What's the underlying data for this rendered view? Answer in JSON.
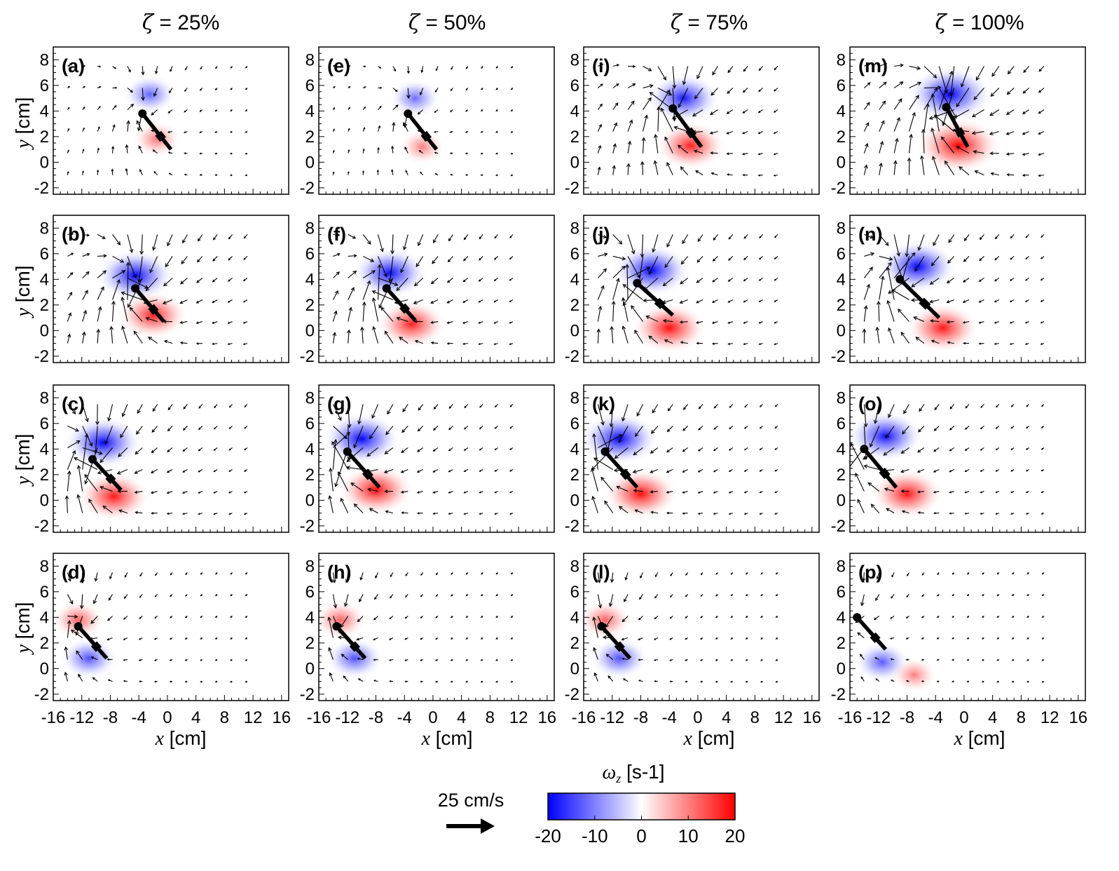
{
  "figure": {
    "column_titles": [
      {
        "symbol": "ζ",
        "text": " = 25%"
      },
      {
        "symbol": "ζ",
        "text": " = 50%"
      },
      {
        "symbol": "ζ",
        "text": " = 75%"
      },
      {
        "symbol": "ζ",
        "text": " = 100%"
      }
    ],
    "panel_labels": [
      [
        "(a)",
        "(b)",
        "(c)",
        "(d)"
      ],
      [
        "(e)",
        "(f)",
        "(g)",
        "(h)"
      ],
      [
        "(i)",
        "(j)",
        "(k)",
        "(l)"
      ],
      [
        "(m)",
        "(n)",
        "(o)",
        "(p)"
      ]
    ],
    "ylabel_var": "y",
    "ylabel_unit": " [cm]",
    "xlabel_var": "x",
    "xlabel_unit": " [cm]",
    "reference_vector_label": "25 cm/s",
    "colorbar_symbol": "ω",
    "colorbar_subscript": "z",
    "colorbar_unit": " [s-1]",
    "colorbar_ticks": [
      "-20",
      "-10",
      "0",
      "10",
      "20"
    ]
  },
  "chart_data": {
    "type": "vector-field-vorticity",
    "xlim": [
      -16,
      17
    ],
    "ylim": [
      -2.5,
      9
    ],
    "xticks": [
      -16,
      -12,
      -8,
      -4,
      0,
      4,
      8,
      12,
      16
    ],
    "yticks": [
      -2,
      0,
      2,
      4,
      6,
      8
    ],
    "colorbar": {
      "min": -20,
      "max": 20,
      "colors": [
        "#0000ff",
        "#ffffff",
        "#ff0000"
      ]
    },
    "reference_vector_cm_s": 25,
    "panels": [
      {
        "label": "(a)",
        "row": 0,
        "col": 0,
        "body": {
          "x1": -3.5,
          "y1": 3.8,
          "x2": 0.5,
          "y2": 1.0
        },
        "neg": {
          "x": -2.5,
          "y": 5.3,
          "s": 0.35
        },
        "pos": {
          "x": -1.5,
          "y": 1.8,
          "s": 0.25
        }
      },
      {
        "label": "(b)",
        "row": 1,
        "col": 0,
        "body": {
          "x1": -4.5,
          "y1": 3.3,
          "x2": -0.5,
          "y2": 0.7
        },
        "neg": {
          "x": -4.5,
          "y": 4.3,
          "s": 0.85
        },
        "pos": {
          "x": -2.0,
          "y": 1.2,
          "s": 0.7
        }
      },
      {
        "label": "(c)",
        "row": 2,
        "col": 0,
        "body": {
          "x1": -10.5,
          "y1": 3.2,
          "x2": -6.5,
          "y2": 0.8
        },
        "neg": {
          "x": -9.0,
          "y": 4.5,
          "s": 0.85
        },
        "pos": {
          "x": -7.5,
          "y": 0.3,
          "s": 0.75
        }
      },
      {
        "label": "(d)",
        "row": 3,
        "col": 0,
        "body": {
          "x1": -12.5,
          "y1": 3.3,
          "x2": -8.5,
          "y2": 0.8
        },
        "neg": {
          "x": -11.0,
          "y": 0.8,
          "s": 0.45
        },
        "pos": {
          "x": -12.5,
          "y": 3.8,
          "s": 0.35
        }
      },
      {
        "label": "(e)",
        "row": 0,
        "col": 1,
        "body": {
          "x1": -3.5,
          "y1": 3.8,
          "x2": 0.5,
          "y2": 1.0
        },
        "neg": {
          "x": -2.5,
          "y": 5.0,
          "s": 0.3
        },
        "pos": {
          "x": -1.5,
          "y": 1.2,
          "s": 0.2
        }
      },
      {
        "label": "(f)",
        "row": 1,
        "col": 1,
        "body": {
          "x1": -6.5,
          "y1": 3.3,
          "x2": -2.5,
          "y2": 0.8
        },
        "neg": {
          "x": -6.0,
          "y": 4.5,
          "s": 0.8
        },
        "pos": {
          "x": -3.0,
          "y": 0.5,
          "s": 0.7
        }
      },
      {
        "label": "(g)",
        "row": 2,
        "col": 1,
        "body": {
          "x1": -12.0,
          "y1": 3.8,
          "x2": -7.5,
          "y2": 1.0
        },
        "neg": {
          "x": -10.0,
          "y": 4.8,
          "s": 0.85
        },
        "pos": {
          "x": -8.0,
          "y": 0.8,
          "s": 0.8
        }
      },
      {
        "label": "(h)",
        "row": 3,
        "col": 1,
        "body": {
          "x1": -13.5,
          "y1": 3.3,
          "x2": -9.5,
          "y2": 0.8
        },
        "neg": {
          "x": -11.0,
          "y": 0.8,
          "s": 0.45
        },
        "pos": {
          "x": -13.0,
          "y": 3.8,
          "s": 0.35
        }
      },
      {
        "label": "(i)",
        "row": 0,
        "col": 2,
        "body": {
          "x1": -3.5,
          "y1": 4.2,
          "x2": 0.5,
          "y2": 1.2
        },
        "neg": {
          "x": -2.0,
          "y": 5.0,
          "s": 0.75
        },
        "pos": {
          "x": -1.0,
          "y": 1.3,
          "s": 0.7
        }
      },
      {
        "label": "(j)",
        "row": 1,
        "col": 2,
        "body": {
          "x1": -8.5,
          "y1": 3.7,
          "x2": -3.5,
          "y2": 1.2
        },
        "neg": {
          "x": -6.5,
          "y": 4.7,
          "s": 0.85
        },
        "pos": {
          "x": -4.0,
          "y": 0.2,
          "s": 0.8
        }
      },
      {
        "label": "(k)",
        "row": 2,
        "col": 2,
        "body": {
          "x1": -13.0,
          "y1": 3.8,
          "x2": -8.5,
          "y2": 1.0
        },
        "neg": {
          "x": -11.0,
          "y": 4.8,
          "s": 0.85
        },
        "pos": {
          "x": -8.0,
          "y": 0.5,
          "s": 0.8
        }
      },
      {
        "label": "(l)",
        "row": 3,
        "col": 2,
        "body": {
          "x1": -13.5,
          "y1": 3.3,
          "x2": -9.5,
          "y2": 0.8
        },
        "neg": {
          "x": -11.0,
          "y": 0.8,
          "s": 0.45
        },
        "pos": {
          "x": -13.0,
          "y": 3.8,
          "s": 0.35
        }
      },
      {
        "label": "(m)",
        "row": 0,
        "col": 3,
        "body": {
          "x1": -2.5,
          "y1": 4.3,
          "x2": 0.5,
          "y2": 1.2
        },
        "neg": {
          "x": -2.0,
          "y": 5.3,
          "s": 1.0
        },
        "pos": {
          "x": -0.8,
          "y": 1.3,
          "s": 1.0
        }
      },
      {
        "label": "(n)",
        "row": 1,
        "col": 3,
        "body": {
          "x1": -9.0,
          "y1": 4.0,
          "x2": -3.5,
          "y2": 1.0
        },
        "neg": {
          "x": -6.5,
          "y": 5.0,
          "s": 0.85
        },
        "pos": {
          "x": -3.0,
          "y": 0.2,
          "s": 0.75
        }
      },
      {
        "label": "(o)",
        "row": 2,
        "col": 3,
        "body": {
          "x1": -14.0,
          "y1": 4.0,
          "x2": -9.5,
          "y2": 1.0
        },
        "neg": {
          "x": -11.0,
          "y": 5.0,
          "s": 0.8
        },
        "pos": {
          "x": -8.0,
          "y": 0.5,
          "s": 0.75
        }
      },
      {
        "label": "(p)",
        "row": 3,
        "col": 3,
        "body": {
          "x1": -15.0,
          "y1": 4.0,
          "x2": -11.0,
          "y2": 1.5
        },
        "neg": {
          "x": -11.5,
          "y": 0.5,
          "s": 0.4
        },
        "pos": {
          "x": -7.0,
          "y": -0.5,
          "s": 0.2
        }
      }
    ]
  }
}
